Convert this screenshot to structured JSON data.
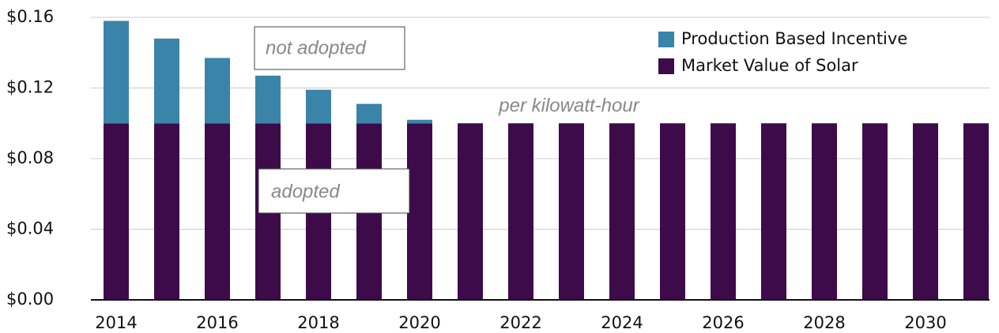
{
  "chart_data": {
    "type": "stacked_bar",
    "categories": [
      "2014",
      null,
      "2016",
      null,
      "2018",
      null,
      "2020",
      null,
      "2022",
      null,
      "2024",
      null,
      "2026",
      null,
      "2028",
      null,
      "2030",
      null
    ],
    "series": [
      {
        "name": "Market Value of Solar",
        "color": "#3d0b4a",
        "values": [
          0.1,
          0.1,
          0.1,
          0.1,
          0.1,
          0.1,
          0.1,
          0.1,
          0.1,
          0.1,
          0.1,
          0.1,
          0.1,
          0.1,
          0.1,
          0.1,
          0.1,
          0.1
        ]
      },
      {
        "name": "Production Based Incentive",
        "color": "#3a84a9",
        "values": [
          0.058,
          0.048,
          0.037,
          0.027,
          0.019,
          0.011,
          0.002,
          0,
          0,
          0,
          0,
          0,
          0,
          0,
          0,
          0,
          0,
          0
        ]
      }
    ],
    "ylim": [
      0,
      0.16
    ],
    "yticks": [
      {
        "value": 0,
        "label": "$0.00"
      },
      {
        "value": 0.04,
        "label": "$0.04"
      },
      {
        "value": 0.08,
        "label": "$0.08"
      },
      {
        "value": 0.12,
        "label": "$0.12"
      },
      {
        "value": 0.16,
        "label": "$0.16"
      }
    ],
    "grid": true,
    "legend": "upper right",
    "annotations": [
      "not adopted",
      "adopted",
      "per kilowatt-hour"
    ]
  }
}
